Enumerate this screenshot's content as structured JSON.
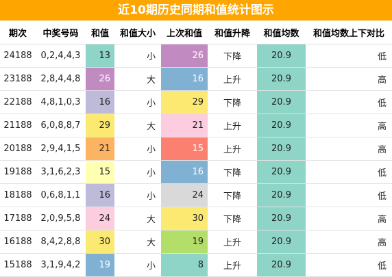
{
  "title": "近10期历史同期和值统计图示",
  "headers": [
    "期次",
    "中奖号码",
    "和值",
    "和值大小",
    "上次和值",
    "和值升降",
    "和值均数",
    "和值均数上下对比"
  ],
  "colors": {
    "title_bg": "#ffa500",
    "avg_bg": "#8ed5c7"
  },
  "rows": [
    {
      "period": "24188",
      "numbers": "0,2,4,4,3",
      "sum": "13",
      "sum_color": "#8ed5c7",
      "size": "小",
      "prev": "26",
      "prev_color": "#c18ac0",
      "trend": "下降",
      "avg": "20.9",
      "compare": "低"
    },
    {
      "period": "23188",
      "numbers": "2,8,4,4,8",
      "sum": "26",
      "sum_color": "#c18ac0",
      "size": "大",
      "prev": "16",
      "prev_color": "#80b1d2",
      "trend": "上升",
      "avg": "20.9",
      "compare": "高"
    },
    {
      "period": "22188",
      "numbers": "4,8,1,0,3",
      "sum": "16",
      "sum_color": "#bdbada",
      "size": "小",
      "prev": "29",
      "prev_color": "#fbe972",
      "trend": "下降",
      "avg": "20.9",
      "compare": "低"
    },
    {
      "period": "21188",
      "numbers": "6,0,8,8,7",
      "sum": "29",
      "sum_color": "#fbe972",
      "size": "大",
      "prev": "21",
      "prev_color": "#fcccdf",
      "trend": "上升",
      "avg": "20.9",
      "compare": "高"
    },
    {
      "period": "20188",
      "numbers": "2,9,4,1,5",
      "sum": "21",
      "sum_color": "#fcb462",
      "size": "小",
      "prev": "15",
      "prev_color": "#fb8070",
      "trend": "上升",
      "avg": "20.9",
      "compare": "高"
    },
    {
      "period": "19188",
      "numbers": "3,1,6,2,3",
      "sum": "15",
      "sum_color": "#ffffb2",
      "size": "小",
      "prev": "16",
      "prev_color": "#80b1d2",
      "trend": "下降",
      "avg": "20.9",
      "compare": "低"
    },
    {
      "period": "18188",
      "numbers": "0,6,8,1,1",
      "sum": "16",
      "sum_color": "#bdbada",
      "size": "小",
      "prev": "24",
      "prev_color": "#d9d9d9",
      "trend": "下降",
      "avg": "20.9",
      "compare": "低"
    },
    {
      "period": "17188",
      "numbers": "2,0,9,5,8",
      "sum": "24",
      "sum_color": "#fcccdf",
      "size": "大",
      "prev": "30",
      "prev_color": "#fbe972",
      "trend": "下降",
      "avg": "20.9",
      "compare": "高"
    },
    {
      "period": "16188",
      "numbers": "8,4,2,8,8",
      "sum": "30",
      "sum_color": "#fbe972",
      "size": "大",
      "prev": "19",
      "prev_color": "#b3de69",
      "trend": "上升",
      "avg": "20.9",
      "compare": "高"
    },
    {
      "period": "15188",
      "numbers": "3,1,9,4,2",
      "sum": "19",
      "sum_color": "#80b1d2",
      "size": "小",
      "prev": "8",
      "prev_color": "#8ed5c7",
      "trend": "上升",
      "avg": "20.9",
      "compare": "低"
    }
  ]
}
